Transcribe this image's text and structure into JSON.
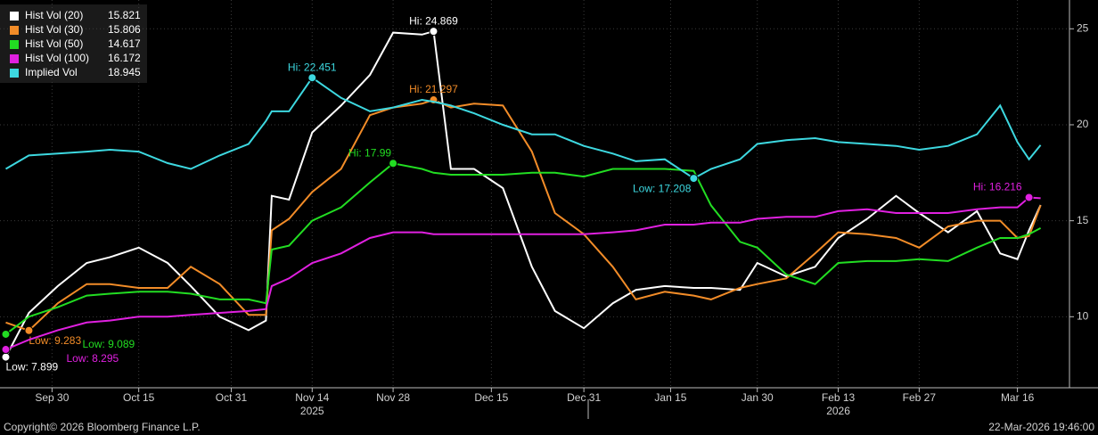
{
  "chart_data": {
    "type": "line",
    "background": "#000000",
    "grid": true,
    "legend_position": "top-left",
    "x": [
      "2025-09-22",
      "2025-09-26",
      "2025-10-01",
      "2025-10-06",
      "2025-10-10",
      "2025-10-15",
      "2025-10-20",
      "2025-10-24",
      "2025-10-29",
      "2025-11-03",
      "2025-11-06",
      "2025-11-07",
      "2025-11-10",
      "2025-11-14",
      "2025-11-19",
      "2025-11-24",
      "2025-11-28",
      "2025-12-03",
      "2025-12-05",
      "2025-12-08",
      "2025-12-12",
      "2025-12-17",
      "2025-12-22",
      "2025-12-26",
      "2025-12-31",
      "2026-01-05",
      "2026-01-09",
      "2026-01-14",
      "2026-01-19",
      "2026-01-22",
      "2026-01-27",
      "2026-01-30",
      "2026-02-04",
      "2026-02-09",
      "2026-02-13",
      "2026-02-18",
      "2026-02-23",
      "2026-02-27",
      "2026-03-04",
      "2026-03-09",
      "2026-03-13",
      "2026-03-16",
      "2026-03-18",
      "2026-03-20"
    ],
    "xlim": [
      "2025-09-21",
      "2026-03-25"
    ],
    "xticks": [
      {
        "value": "2025-09-30",
        "label": "Sep 30"
      },
      {
        "value": "2025-10-15",
        "label": "Oct 15"
      },
      {
        "value": "2025-10-31",
        "label": "Oct 31"
      },
      {
        "value": "2025-11-14",
        "label": "Nov 14"
      },
      {
        "value": "2025-11-28",
        "label": "Nov 28"
      },
      {
        "value": "2025-12-15",
        "label": "Dec 15"
      },
      {
        "value": "2025-12-31",
        "label": "Dec 31"
      },
      {
        "value": "2026-01-15",
        "label": "Jan 15"
      },
      {
        "value": "2026-01-30",
        "label": "Jan 30"
      },
      {
        "value": "2026-02-13",
        "label": "Feb 13"
      },
      {
        "value": "2026-02-27",
        "label": "Feb 27"
      },
      {
        "value": "2026-03-16",
        "label": "Mar 16"
      }
    ],
    "year_labels": [
      {
        "value": "2025-11-14",
        "label": "2025"
      },
      {
        "value": "2026-02-13",
        "label": "2026"
      }
    ],
    "ylim": [
      6.3,
      26.5
    ],
    "yticks": [
      10,
      15,
      20,
      25
    ],
    "series": [
      {
        "name": "Hist Vol (20)",
        "color": "#ffffff",
        "hi_label": "Hi: 24.869",
        "low_label": "Low: 7.899",
        "values": [
          7.899,
          10.2,
          11.6,
          12.8,
          13.1,
          13.6,
          12.8,
          11.6,
          10,
          9.3,
          9.8,
          16.3,
          16.1,
          19.6,
          21,
          22.6,
          24.8,
          24.7,
          24.869,
          17.7,
          17.7,
          16.7,
          12.6,
          10.3,
          9.4,
          10.7,
          11.4,
          11.6,
          11.5,
          11.5,
          11.4,
          12.8,
          12.1,
          12.6,
          14.1,
          15.1,
          16.3,
          15.4,
          14.4,
          15.5,
          13.3,
          13.0,
          14.5,
          15.821
        ]
      },
      {
        "name": "Hist Vol (30)",
        "color": "#f28c28",
        "hi_label": "Hi: 21.297",
        "low_label": "Low: 9.283",
        "values": [
          9.7,
          9.283,
          10.7,
          11.7,
          11.7,
          11.5,
          11.5,
          12.6,
          11.7,
          10.1,
          10.1,
          14.5,
          15.1,
          16.5,
          17.7,
          20.5,
          20.9,
          21.1,
          21.297,
          20.9,
          21.1,
          21.0,
          18.6,
          15.4,
          14.3,
          12.6,
          10.9,
          11.3,
          11.1,
          10.9,
          11.5,
          11.7,
          12.0,
          13.3,
          14.4,
          14.3,
          14.1,
          13.6,
          14.7,
          15.0,
          15.0,
          14.1,
          14.2,
          15.806
        ]
      },
      {
        "name": "Hist Vol (50)",
        "color": "#22dd22",
        "hi_label": "Hi: 17.99",
        "low_label": "Low: 9.089",
        "values": [
          9.089,
          10.0,
          10.5,
          11.1,
          11.2,
          11.3,
          11.3,
          11.2,
          10.9,
          10.9,
          10.7,
          13.5,
          13.7,
          15.0,
          15.7,
          17.0,
          17.99,
          17.7,
          17.5,
          17.4,
          17.4,
          17.4,
          17.5,
          17.5,
          17.3,
          17.7,
          17.7,
          17.7,
          17.6,
          15.8,
          13.9,
          13.6,
          12.2,
          11.7,
          12.8,
          12.9,
          12.9,
          13.0,
          12.9,
          13.6,
          14.1,
          14.1,
          14.3,
          14.617
        ]
      },
      {
        "name": "Hist Vol (100)",
        "color": "#e020e0",
        "hi_label": "Hi: 16.216",
        "low_label": "Low: 8.295",
        "values": [
          8.295,
          8.8,
          9.3,
          9.7,
          9.8,
          10,
          10,
          10.1,
          10.2,
          10.3,
          10.4,
          11.6,
          12,
          12.8,
          13.3,
          14.1,
          14.4,
          14.4,
          14.3,
          14.3,
          14.3,
          14.3,
          14.3,
          14.3,
          14.3,
          14.4,
          14.5,
          14.8,
          14.8,
          14.9,
          14.9,
          15.1,
          15.2,
          15.2,
          15.5,
          15.6,
          15.4,
          15.4,
          15.4,
          15.6,
          15.7,
          15.7,
          16.216,
          16.172
        ]
      },
      {
        "name": "Implied Vol",
        "color": "#3dd8e0",
        "hi_label": "Hi: 22.451",
        "low_label": "Low: 17.208",
        "values": [
          17.7,
          18.4,
          18.5,
          18.6,
          18.7,
          18.6,
          18.0,
          17.7,
          18.4,
          19.0,
          20.2,
          20.7,
          20.7,
          22.451,
          21.4,
          20.7,
          20.9,
          21.3,
          21.2,
          21.0,
          20.6,
          20.0,
          19.5,
          19.5,
          18.9,
          18.5,
          18.1,
          18.2,
          17.208,
          17.7,
          18.2,
          19.0,
          19.2,
          19.3,
          19.1,
          19.0,
          18.9,
          18.7,
          18.9,
          19.5,
          21.0,
          19.1,
          18.2,
          18.945
        ]
      }
    ],
    "footer": {
      "copyright": "Copyright© 2026 Bloomberg Finance L.P.",
      "timestamp": "22-Mar-2026 19:46:00"
    }
  }
}
